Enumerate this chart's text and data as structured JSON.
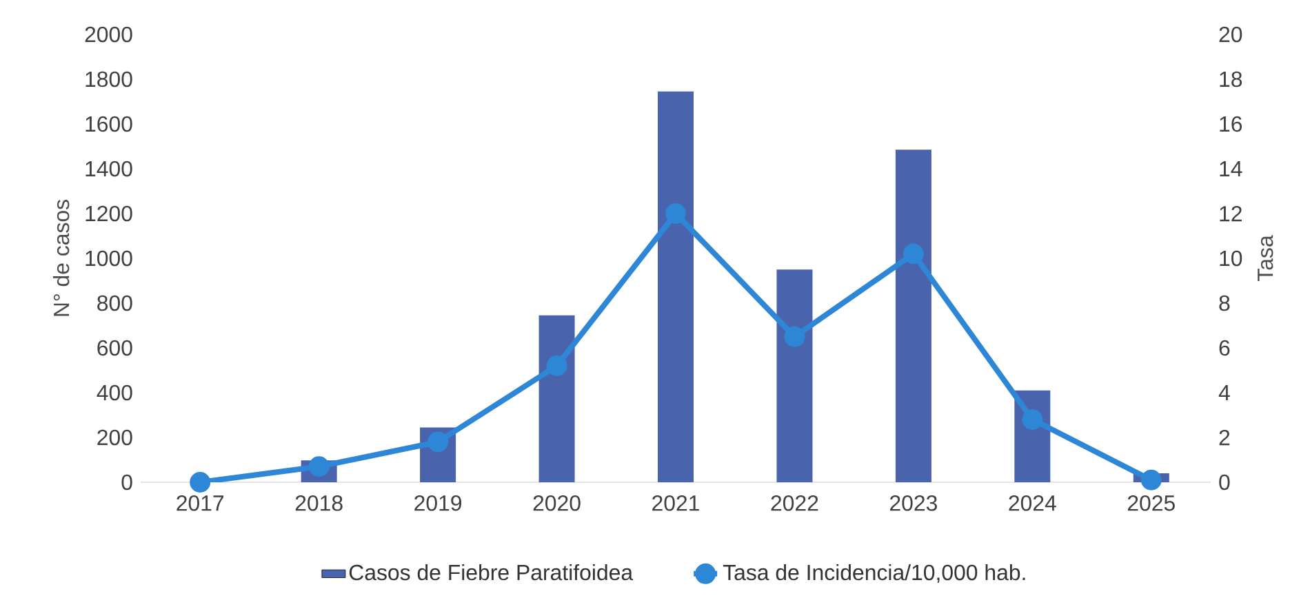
{
  "chart_data": {
    "type": "bar",
    "ylabel": "N° de casos",
    "y2label": "Tasa",
    "categories": [
      "2017",
      "2018",
      "2019",
      "2020",
      "2021",
      "2022",
      "2023",
      "2024",
      "2025"
    ],
    "series": [
      {
        "name": "Casos de Fiebre Paratifoidea",
        "color": "#4a63ad",
        "values": [
          0,
          98,
          245,
          745,
          1745,
          950,
          1485,
          410,
          40
        ]
      },
      {
        "name": "Tasa de Incidencia/10,000 hab.",
        "color": "#2e86d6",
        "type": "line",
        "axis": "y2",
        "marker": "circle",
        "values": [
          0,
          0.7,
          1.8,
          5.2,
          12.0,
          6.5,
          10.2,
          2.8,
          0.1
        ]
      }
    ],
    "ylim": [
      0,
      2000
    ],
    "yticks": [
      0,
      200,
      400,
      600,
      800,
      1000,
      1200,
      1400,
      1600,
      1800,
      2000
    ],
    "y2lim": [
      0,
      20
    ],
    "y2ticks": [
      0,
      2,
      4,
      6,
      8,
      10,
      12,
      14,
      16,
      18,
      20
    ],
    "grid": false,
    "legend": "bottom"
  }
}
